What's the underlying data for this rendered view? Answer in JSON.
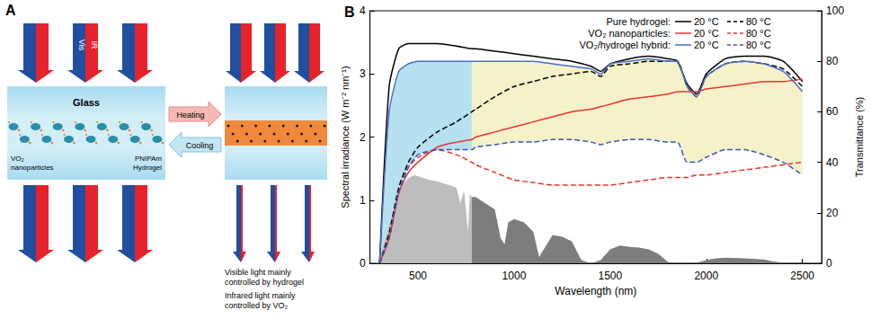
{
  "diagram": {
    "label": "A",
    "arrow_labels": [
      "Vis",
      "IR"
    ],
    "layer_labels": {
      "glass": "Glass",
      "particles": "VO₂ nanoparticles",
      "hydrogel": "PNIPAm Hydrogel"
    },
    "process": [
      "Heating",
      "Cooling"
    ],
    "notes": [
      "Visible light mainly controlled by hydrogel",
      "Infrared light mainly controlled by VO₂"
    ]
  },
  "chart_data": {
    "type": "line",
    "title": "B",
    "xlabel": "Wavelength (nm)",
    "ylabel": "Spectral irradiance (W m⁻² nm⁻¹)",
    "y2label": "Transmittance (%)",
    "xlim": [
      250,
      2600
    ],
    "xticks": [
      500,
      1000,
      1500,
      2000,
      2500
    ],
    "ylim": [
      0,
      4
    ],
    "yticks": [
      0,
      1,
      2,
      3,
      4
    ],
    "y2lim": [
      0,
      100
    ],
    "y2ticks": [
      0,
      20,
      40,
      60,
      80,
      100
    ],
    "grid": false,
    "legend": "top",
    "x": [
      300,
      350,
      400,
      450,
      500,
      600,
      700,
      780,
      800,
      900,
      1000,
      1100,
      1200,
      1300,
      1400,
      1450,
      1500,
      1600,
      1700,
      1800,
      1850,
      1900,
      1950,
      2000,
      2100,
      2200,
      2300,
      2400,
      2500
    ],
    "series": [
      {
        "group": "Pure hydrogel:",
        "name": "20 °C",
        "color": "#000000",
        "line_style": "solid",
        "axis": "y2",
        "values": [
          0,
          70,
          85,
          87,
          87,
          87,
          86,
          85,
          85,
          84,
          83,
          82,
          81,
          80,
          78,
          76,
          79,
          81,
          82,
          81,
          80,
          71,
          67,
          75,
          81,
          82,
          82,
          80,
          72
        ]
      },
      {
        "group": "Pure hydrogel:",
        "name": "80 °C",
        "color": "#000000",
        "line_style": "dashed",
        "axis": "y2",
        "values": [
          0,
          12,
          30,
          40,
          46,
          52,
          56,
          60,
          61,
          66,
          70,
          72,
          74,
          75,
          76,
          74,
          78,
          79,
          80,
          80,
          80,
          70,
          66,
          74,
          79,
          80,
          79,
          77,
          70
        ]
      },
      {
        "group": "VO₂ nanoparticles:",
        "name": "20 °C",
        "color": "#e8362e",
        "line_style": "solid",
        "axis": "y2",
        "values": [
          0,
          10,
          28,
          36,
          40,
          46,
          48,
          49,
          50,
          52,
          54,
          56,
          58,
          60,
          61,
          62,
          63,
          65,
          66,
          67,
          68,
          68,
          68,
          69,
          70,
          71,
          72,
          72,
          73
        ]
      },
      {
        "group": "VO₂ nanoparticles:",
        "name": "80 °C",
        "color": "#e8362e",
        "line_style": "dashed",
        "axis": "y2",
        "values": [
          0,
          10,
          28,
          38,
          42,
          45,
          43,
          40,
          39,
          36,
          33,
          32,
          31,
          31,
          31,
          31,
          31,
          32,
          33,
          34,
          34,
          34,
          35,
          35,
          36,
          37,
          38,
          39,
          40
        ]
      },
      {
        "group": "VO₂/hydrogel hybrid:",
        "name": "20 °C",
        "color": "#4a6cc4",
        "line_style": "solid",
        "axis": "y2",
        "values": [
          0,
          60,
          76,
          79,
          80,
          80,
          80,
          80,
          80,
          80,
          80,
          80,
          79,
          78,
          77,
          75,
          79,
          80,
          81,
          80,
          80,
          70,
          66,
          74,
          79,
          80,
          79,
          76,
          68
        ]
      },
      {
        "group": "VO₂/hydrogel hybrid:",
        "name": "80 °C",
        "color": "#3a58b0",
        "line_style": "dashed",
        "axis": "y2",
        "values": [
          0,
          10,
          28,
          38,
          43,
          45,
          45,
          45,
          46,
          47,
          48,
          48,
          49,
          49,
          48,
          47,
          48,
          49,
          49,
          48,
          48,
          40,
          40,
          42,
          45,
          45,
          43,
          40,
          35
        ]
      }
    ],
    "fill_between": {
      "group": "VO₂/hydrogel hybrid:",
      "ranges": [
        [
          300,
          780
        ],
        [
          780,
          2500
        ]
      ],
      "colors": [
        "#a9dcef",
        "#f3efbf"
      ]
    },
    "solar": {
      "type": "area",
      "axis": "y",
      "split": 780,
      "colors": [
        "#bdbdbd",
        "#7d7d7d"
      ],
      "x": [
        280,
        300,
        320,
        350,
        380,
        400,
        420,
        450,
        480,
        500,
        530,
        560,
        600,
        650,
        700,
        720,
        740,
        760,
        770,
        780,
        800,
        850,
        900,
        930,
        950,
        970,
        1000,
        1050,
        1100,
        1130,
        1150,
        1200,
        1250,
        1300,
        1350,
        1400,
        1450,
        1500,
        1550,
        1600,
        1650,
        1700,
        1750,
        1800,
        1850,
        1950,
        2000,
        2050,
        2100,
        2200,
        2300,
        2350,
        2400,
        2500
      ],
      "values": [
        0,
        0.05,
        0.3,
        0.6,
        0.9,
        1.1,
        1.25,
        1.35,
        1.4,
        1.38,
        1.35,
        1.32,
        1.3,
        1.25,
        1.2,
        0.95,
        1.15,
        0.5,
        1.1,
        1.05,
        1.05,
        0.95,
        0.85,
        0.4,
        0.3,
        0.65,
        0.7,
        0.65,
        0.5,
        0.1,
        0.2,
        0.45,
        0.42,
        0.35,
        0.05,
        0,
        0.05,
        0.22,
        0.28,
        0.26,
        0.25,
        0.22,
        0.15,
        0.02,
        0,
        0.01,
        0.05,
        0.08,
        0.09,
        0.08,
        0.06,
        0.03,
        0.01,
        0
      ]
    }
  }
}
